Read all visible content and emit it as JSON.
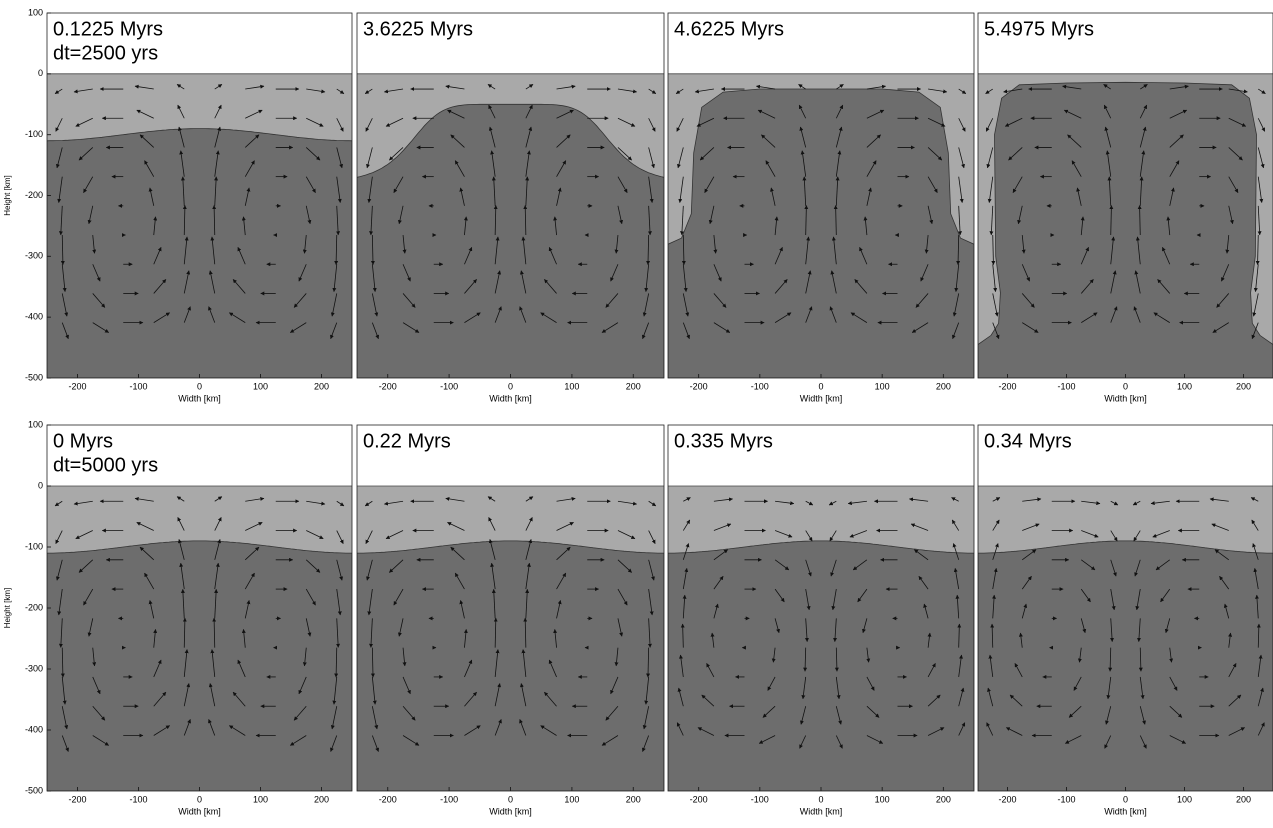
{
  "chart_data": [
    {
      "type": "field",
      "title": "0.1225 Myrs",
      "annotation": "dt=2500 yrs",
      "xlabel": "Width [km]",
      "ylabel": "Height [km]",
      "xlim": [
        -250,
        250
      ],
      "ylim": [
        -500,
        100
      ],
      "xticks": [
        -200,
        -100,
        0,
        100,
        200
      ],
      "yticks": [
        100,
        0,
        -100,
        -200,
        -300,
        -400,
        -500
      ]
    },
    {
      "type": "field",
      "title": "3.6225 Myrs",
      "xlabel": "Width [km]",
      "xlim": [
        -250,
        250
      ],
      "ylim": [
        -500,
        100
      ],
      "xticks": [
        -200,
        -100,
        0,
        100,
        200
      ]
    },
    {
      "type": "field",
      "title": "4.6225 Myrs",
      "xlabel": "Width [km]",
      "xlim": [
        -250,
        250
      ],
      "ylim": [
        -500,
        100
      ],
      "xticks": [
        -200,
        -100,
        0,
        100,
        200
      ]
    },
    {
      "type": "field",
      "title": "5.4975 Myrs",
      "xlabel": "Width [km]",
      "xlim": [
        -250,
        250
      ],
      "ylim": [
        -500,
        100
      ],
      "xticks": [
        -200,
        -100,
        0,
        100,
        200
      ]
    },
    {
      "type": "field",
      "title": "0 Myrs",
      "annotation": "dt=5000 yrs",
      "xlabel": "Width [km]",
      "ylabel": "Height [km]",
      "xlim": [
        -250,
        250
      ],
      "ylim": [
        -500,
        100
      ],
      "xticks": [
        -200,
        -100,
        0,
        100,
        200
      ],
      "yticks": [
        100,
        0,
        -100,
        -200,
        -300,
        -400,
        -500
      ]
    },
    {
      "type": "field",
      "title": "0.22 Myrs",
      "xlabel": "Width [km]",
      "xlim": [
        -250,
        250
      ],
      "ylim": [
        -500,
        100
      ],
      "xticks": [
        -200,
        -100,
        0,
        100,
        200
      ]
    },
    {
      "type": "field",
      "title": "0.335 Myrs",
      "xlabel": "Width [km]",
      "xlim": [
        -250,
        250
      ],
      "ylim": [
        -500,
        100
      ],
      "xticks": [
        -200,
        -100,
        0,
        100,
        200
      ]
    },
    {
      "type": "field",
      "title": "0.34 Myrs",
      "xlabel": "Width [km]",
      "xlim": [
        -250,
        250
      ],
      "ylim": [
        -500,
        100
      ],
      "xticks": [
        -200,
        -100,
        0,
        100,
        200
      ]
    }
  ]
}
